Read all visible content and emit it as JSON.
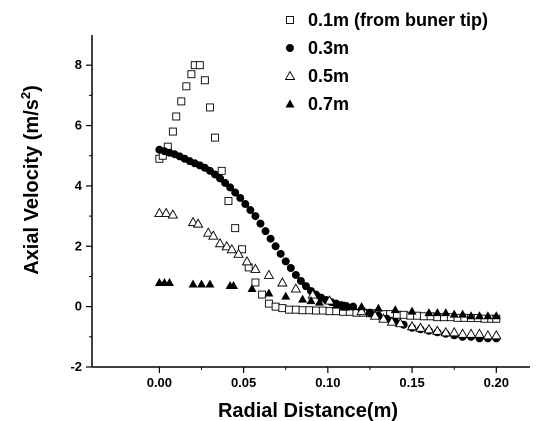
{
  "chart_data": {
    "type": "scatter",
    "title": "",
    "xlabel": "Radial Distance(m)",
    "ylabel_main": "Axial Velocity (m/s",
    "ylabel_sup": "2",
    "ylabel_close": ")",
    "xlim": [
      -0.04,
      0.22
    ],
    "ylim": [
      -2,
      9
    ],
    "x_ticks": [
      0.0,
      0.05,
      0.1,
      0.15,
      0.2
    ],
    "x_tick_labels": [
      "0.00",
      "0.05",
      "0.10",
      "0.15",
      "0.20"
    ],
    "y_ticks": [
      -2,
      0,
      2,
      4,
      6,
      8
    ],
    "y_tick_labels": [
      "-2",
      "0",
      "2",
      "4",
      "6",
      "8"
    ],
    "legend_position": "top-right",
    "series": [
      {
        "name": "0.1m (from buner tip)",
        "marker": "open-square",
        "x": [
          0.0,
          0.002,
          0.005,
          0.008,
          0.01,
          0.013,
          0.016,
          0.019,
          0.021,
          0.024,
          0.027,
          0.03,
          0.033,
          0.037,
          0.041,
          0.045,
          0.049,
          0.053,
          0.057,
          0.061,
          0.065,
          0.069,
          0.073,
          0.077,
          0.081,
          0.085,
          0.089,
          0.093,
          0.097,
          0.101,
          0.105,
          0.109,
          0.113,
          0.117,
          0.121,
          0.125,
          0.129,
          0.133,
          0.137,
          0.141,
          0.145,
          0.149,
          0.153,
          0.157,
          0.161,
          0.165,
          0.169,
          0.173,
          0.177,
          0.181,
          0.185,
          0.189,
          0.193,
          0.197,
          0.2
        ],
        "y": [
          4.9,
          5.0,
          5.3,
          5.8,
          6.3,
          6.8,
          7.3,
          7.7,
          8.0,
          8.0,
          7.5,
          6.6,
          5.6,
          4.5,
          3.5,
          2.6,
          1.9,
          1.3,
          0.8,
          0.4,
          0.1,
          0.0,
          -0.05,
          -0.1,
          -0.1,
          -0.12,
          -0.12,
          -0.13,
          -0.13,
          -0.15,
          -0.15,
          -0.17,
          -0.17,
          -0.2,
          -0.2,
          -0.22,
          -0.22,
          -0.25,
          -0.25,
          -0.27,
          -0.27,
          -0.3,
          -0.3,
          -0.32,
          -0.32,
          -0.35,
          -0.35,
          -0.35,
          -0.37,
          -0.37,
          -0.38,
          -0.38,
          -0.4,
          -0.4,
          -0.4
        ]
      },
      {
        "name": "0.3m",
        "marker": "filled-circle",
        "x": [
          0.0,
          0.003,
          0.006,
          0.009,
          0.012,
          0.015,
          0.018,
          0.021,
          0.024,
          0.027,
          0.03,
          0.033,
          0.036,
          0.039,
          0.042,
          0.045,
          0.048,
          0.051,
          0.054,
          0.057,
          0.06,
          0.063,
          0.066,
          0.069,
          0.072,
          0.075,
          0.078,
          0.081,
          0.084,
          0.087,
          0.09,
          0.093,
          0.096,
          0.099,
          0.102,
          0.105,
          0.108,
          0.111,
          0.115,
          0.12,
          0.125,
          0.13,
          0.135,
          0.14,
          0.145,
          0.15,
          0.155,
          0.16,
          0.165,
          0.17,
          0.175,
          0.18,
          0.185,
          0.19,
          0.195,
          0.2
        ],
        "y": [
          5.2,
          5.15,
          5.1,
          5.05,
          4.98,
          4.9,
          4.82,
          4.75,
          4.68,
          4.6,
          4.5,
          4.38,
          4.25,
          4.1,
          3.95,
          3.78,
          3.6,
          3.4,
          3.2,
          3.0,
          2.75,
          2.5,
          2.25,
          2.0,
          1.75,
          1.5,
          1.28,
          1.05,
          0.85,
          0.68,
          0.52,
          0.4,
          0.3,
          0.22,
          0.15,
          0.1,
          0.05,
          0.02,
          0.0,
          -0.1,
          -0.2,
          -0.3,
          -0.4,
          -0.5,
          -0.6,
          -0.7,
          -0.75,
          -0.8,
          -0.85,
          -0.9,
          -0.95,
          -1.0,
          -1.0,
          -1.05,
          -1.05,
          -1.05
        ]
      },
      {
        "name": "0.5m",
        "marker": "open-triangle",
        "x": [
          0.0,
          0.004,
          0.008,
          0.02,
          0.023,
          0.029,
          0.032,
          0.036,
          0.04,
          0.043,
          0.047,
          0.052,
          0.057,
          0.065,
          0.073,
          0.081,
          0.091,
          0.101,
          0.11,
          0.12,
          0.128,
          0.133,
          0.138,
          0.143,
          0.15,
          0.155,
          0.16,
          0.165,
          0.17,
          0.175,
          0.18,
          0.185,
          0.19,
          0.195,
          0.2
        ],
        "y": [
          3.1,
          3.1,
          3.05,
          2.8,
          2.75,
          2.45,
          2.35,
          2.1,
          2.0,
          1.9,
          1.75,
          1.5,
          1.25,
          1.05,
          0.8,
          0.6,
          0.4,
          0.2,
          0.0,
          -0.15,
          -0.3,
          -0.4,
          -0.5,
          -0.55,
          -0.65,
          -0.7,
          -0.75,
          -0.8,
          -0.85,
          -0.85,
          -0.9,
          -0.9,
          -0.9,
          -0.95,
          -0.95
        ]
      },
      {
        "name": "0.7m",
        "marker": "filled-triangle",
        "x": [
          0.0,
          0.003,
          0.006,
          0.02,
          0.025,
          0.03,
          0.042,
          0.044,
          0.055,
          0.065,
          0.075,
          0.085,
          0.09,
          0.095,
          0.105,
          0.11,
          0.115,
          0.12,
          0.13,
          0.14,
          0.15,
          0.16,
          0.165,
          0.17,
          0.175,
          0.18,
          0.185,
          0.19,
          0.195,
          0.2
        ],
        "y": [
          0.8,
          0.8,
          0.8,
          0.75,
          0.75,
          0.75,
          0.7,
          0.7,
          0.6,
          0.45,
          0.35,
          0.25,
          0.2,
          0.15,
          0.05,
          0.0,
          0.0,
          0.0,
          -0.05,
          -0.1,
          -0.15,
          -0.2,
          -0.2,
          -0.2,
          -0.25,
          -0.25,
          -0.3,
          -0.3,
          -0.3,
          -0.3
        ]
      }
    ]
  }
}
